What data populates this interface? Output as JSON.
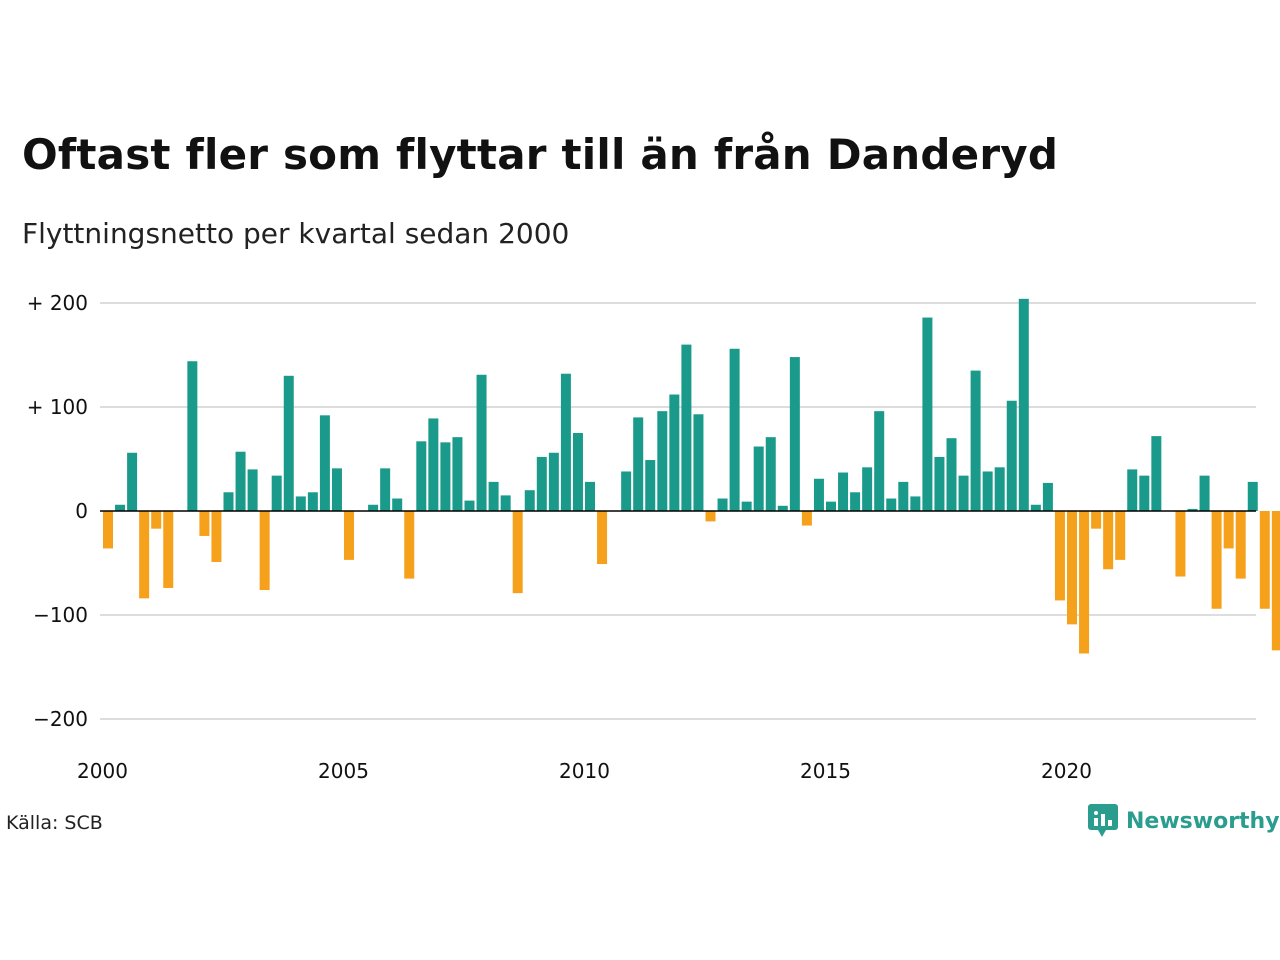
{
  "title": "Oftast fler som flyttar till än från Danderyd",
  "subtitle": "Flyttningsnetto per kvartal sedan 2000",
  "source": "Källa: SCB",
  "brand": "Newsworthy",
  "colors": {
    "positive": "#1a9a8a",
    "negative": "#f5a11c",
    "grid": "#dddddd",
    "axis": "#000000",
    "brand": "#2a9d8f"
  },
  "chart_data": {
    "type": "bar",
    "x_ticks": [
      "2000",
      "2005",
      "2010",
      "2015",
      "2020"
    ],
    "y_ticks": [
      {
        "value": 200,
        "label": "+ 200"
      },
      {
        "value": 100,
        "label": "+ 100"
      },
      {
        "value": 0,
        "label": "0"
      },
      {
        "value": -100,
        "label": "−100"
      },
      {
        "value": -200,
        "label": "−200"
      }
    ],
    "ylim": [
      -200,
      200
    ],
    "grid": true,
    "categories": [
      "2000 K1",
      "2000 K2",
      "2000 K3",
      "2000 K4",
      "2001 K1",
      "2001 K2",
      "2001 K3",
      "2001 K4",
      "2002 K1",
      "2002 K2",
      "2002 K3",
      "2002 K4",
      "2003 K1",
      "2003 K2",
      "2003 K3",
      "2003 K4",
      "2004 K1",
      "2004 K2",
      "2004 K3",
      "2004 K4",
      "2005 K1",
      "2005 K2",
      "2005 K3",
      "2005 K4",
      "2006 K1",
      "2006 K2",
      "2006 K3",
      "2006 K4",
      "2007 K1",
      "2007 K2",
      "2007 K3",
      "2007 K4",
      "2008 K1",
      "2008 K2",
      "2008 K3",
      "2008 K4",
      "2009 K1",
      "2009 K2",
      "2009 K3",
      "2009 K4",
      "2010 K1",
      "2010 K2",
      "2010 K3",
      "2010 K4",
      "2011 K1",
      "2011 K2",
      "2011 K3",
      "2011 K4",
      "2012 K1",
      "2012 K2",
      "2012 K3",
      "2012 K4",
      "2013 K1",
      "2013 K2",
      "2013 K3",
      "2013 K4",
      "2014 K1",
      "2014 K2",
      "2014 K3",
      "2014 K4",
      "2015 K1",
      "2015 K2",
      "2015 K3",
      "2015 K4",
      "2016 K1",
      "2016 K2",
      "2016 K3",
      "2016 K4",
      "2017 K1",
      "2017 K2",
      "2017 K3",
      "2017 K4",
      "2018 K1",
      "2018 K2",
      "2018 K3",
      "2018 K4",
      "2019 K1",
      "2019 K2",
      "2019 K3",
      "2019 K4",
      "2020 K1",
      "2020 K2",
      "2020 K3",
      "2020 K4",
      "2021 K1",
      "2021 K2",
      "2021 K3",
      "2021 K4",
      "2022 K1",
      "2022 K2",
      "2022 K3",
      "2022 K4",
      "2023 K1",
      "2023 K2",
      "2023 K3",
      "2023 K4",
      "2024 K1",
      "2024 K2"
    ],
    "values": [
      -36,
      6,
      56,
      -84,
      -17,
      -74,
      0,
      144,
      -24,
      -49,
      18,
      57,
      40,
      -76,
      34,
      130,
      14,
      18,
      92,
      41,
      -47,
      0,
      6,
      41,
      12,
      -65,
      67,
      89,
      66,
      71,
      10,
      131,
      28,
      15,
      -79,
      20,
      52,
      56,
      132,
      75,
      28,
      -51,
      0,
      38,
      90,
      49,
      96,
      112,
      160,
      93,
      -10,
      12,
      156,
      9,
      62,
      71,
      5,
      148,
      -14,
      31,
      9,
      37,
      18,
      42,
      96,
      12,
      28,
      14,
      186,
      52,
      70,
      34,
      135,
      38,
      42,
      106,
      204,
      6,
      27,
      -86,
      -109,
      -137,
      -17,
      -56,
      -47,
      40,
      34,
      72,
      0,
      -63,
      2,
      34,
      -94,
      -36,
      -65,
      28,
      -94,
      -134
    ]
  }
}
